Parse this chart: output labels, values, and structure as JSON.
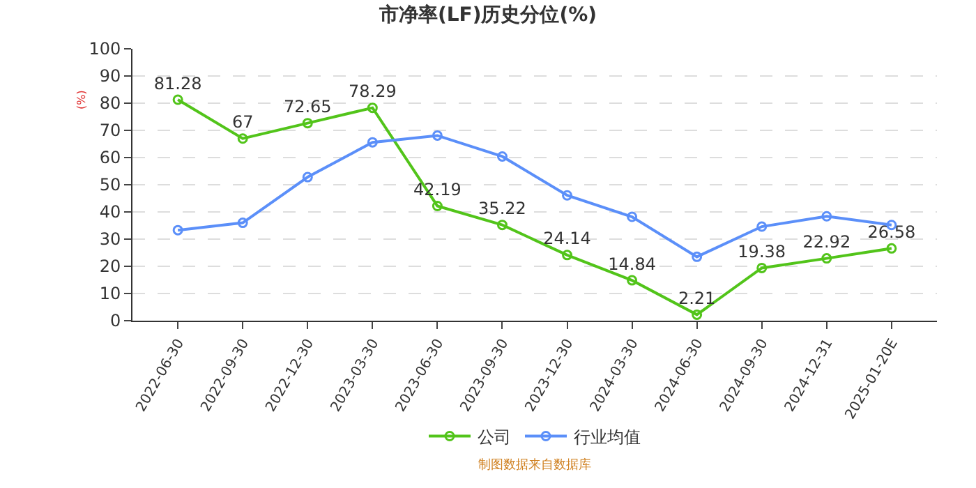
{
  "chart_data": {
    "type": "line",
    "title": "市净率(LF)历史分位(%)",
    "ylabel": "(%)",
    "categories": [
      "2022-06-30",
      "2022-09-30",
      "2022-12-30",
      "2023-03-30",
      "2023-06-30",
      "2023-09-30",
      "2023-12-30",
      "2024-03-30",
      "2024-06-30",
      "2024-09-30",
      "2024-12-31",
      "2025-01-20E"
    ],
    "series": [
      {
        "name": "公司",
        "color": "#52c41a",
        "values": [
          81.28,
          67,
          72.65,
          78.29,
          42.19,
          35.22,
          24.14,
          14.84,
          2.21,
          19.38,
          22.92,
          26.58
        ],
        "value_labels": [
          "81.28",
          "67",
          "72.65",
          "78.29",
          "42.19",
          "35.22",
          "24.14",
          "14.84",
          "2.21",
          "19.38",
          "22.92",
          "26.58"
        ]
      },
      {
        "name": "行业均值",
        "color": "#5b8ff9",
        "values": [
          33.3,
          36,
          52.8,
          65.6,
          68.1,
          60.4,
          46.1,
          38.2,
          23.5,
          34.6,
          38.4,
          35.2
        ]
      }
    ],
    "ylim": [
      0,
      100
    ],
    "yticks": [
      0,
      10,
      20,
      30,
      40,
      50,
      60,
      70,
      80,
      90,
      100
    ],
    "grid": "y",
    "legend": "bottom",
    "marker": "circle",
    "line_style": "solid",
    "annotations": [
      "制图数据来自数据库"
    ]
  }
}
